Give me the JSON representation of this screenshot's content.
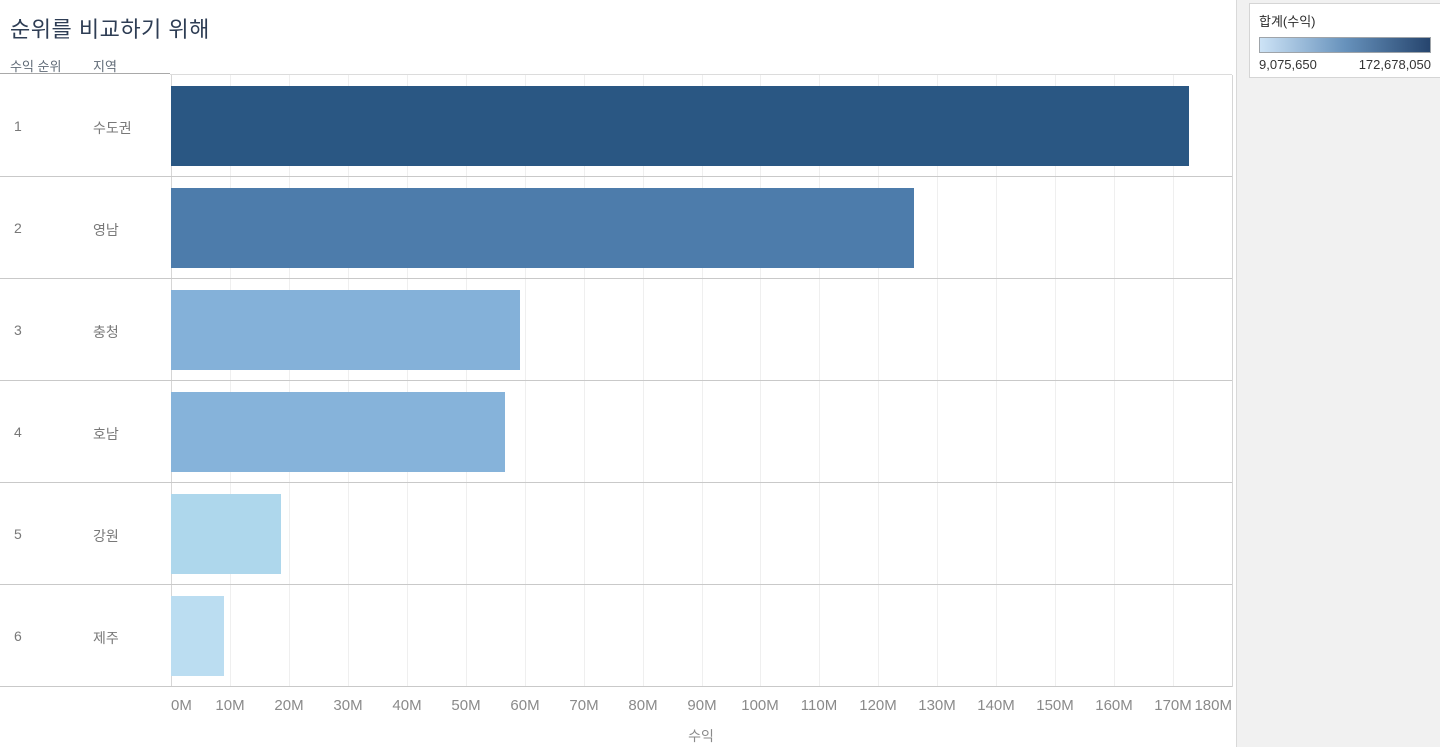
{
  "title": "순위를 비교하기 위해",
  "columns": {
    "rank": "수익 순위",
    "region": "지역"
  },
  "axis": {
    "label": "수익",
    "ticks": [
      "0M",
      "10M",
      "20M",
      "30M",
      "40M",
      "50M",
      "60M",
      "70M",
      "80M",
      "90M",
      "100M",
      "110M",
      "120M",
      "130M",
      "140M",
      "150M",
      "160M",
      "170M",
      "180M"
    ]
  },
  "legend": {
    "title": "합계(수익)",
    "min_label": "9,075,650",
    "max_label": "172,678,050",
    "gradient_start": "#cde3f6",
    "gradient_mid": "#6792bc",
    "gradient_end": "#26456e"
  },
  "chart_data": {
    "type": "bar",
    "orientation": "horizontal",
    "title": "순위를 비교하기 위해",
    "xlabel": "수익",
    "xlim": [
      0,
      180000000
    ],
    "grid": true,
    "legend_position": "top-right",
    "legend_title": "합계(수익)",
    "legend_range": [
      9075650,
      172678050
    ],
    "ranks": [
      1,
      2,
      3,
      4,
      5,
      6
    ],
    "categories": [
      "수도권",
      "영남",
      "충청",
      "호남",
      "강원",
      "제주"
    ],
    "values": [
      172678050,
      126000000,
      59200000,
      56600000,
      18600000,
      9075650
    ],
    "bar_colors": [
      "#2a5783",
      "#4d7cab",
      "#84b1d9",
      "#86b3da",
      "#aed7ec",
      "#bbddf1"
    ],
    "axis_max": 180000000
  }
}
